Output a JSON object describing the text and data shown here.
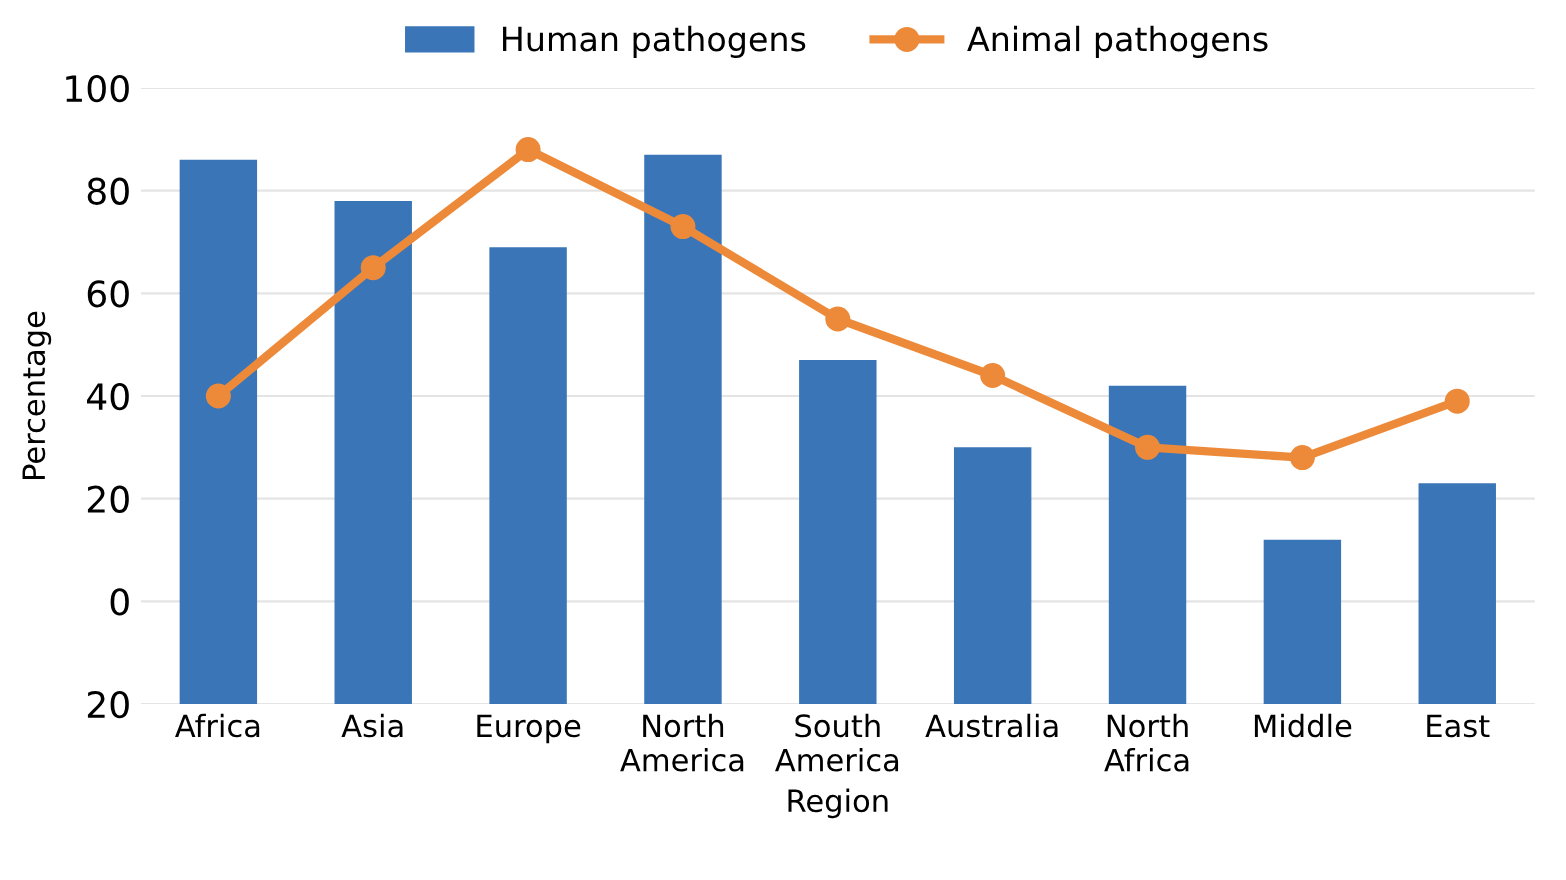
{
  "chart_data": {
    "type": "bar",
    "xlabel": "Region",
    "ylabel": "Percentage",
    "categories": [
      "Africa",
      "Asia",
      "Europe",
      "North\nAmerica",
      "South\nAmerica",
      "Australia",
      "North\nAfrica",
      "Middle",
      "East"
    ],
    "series": [
      {
        "name": "Human pathogens",
        "color": "#3a75b8",
        "base": [
          -20,
          -20,
          -20,
          -20,
          -20,
          -20,
          -20,
          -20,
          -20
        ],
        "values": [
          106,
          98,
          89,
          107,
          67,
          50,
          62,
          32,
          43
        ]
      },
      {
        "name": "Animal pathogens",
        "type": "line",
        "color": "#ed8a3a",
        "marker": "circle",
        "values": [
          40,
          65,
          88,
          73,
          55,
          44,
          30,
          28,
          39
        ]
      }
    ],
    "ylim": [
      -20,
      100
    ],
    "yticks": [
      {
        "value": -20,
        "label": "20"
      },
      0,
      20,
      40,
      60,
      80,
      100
    ],
    "grid": "y",
    "legend": "top"
  }
}
